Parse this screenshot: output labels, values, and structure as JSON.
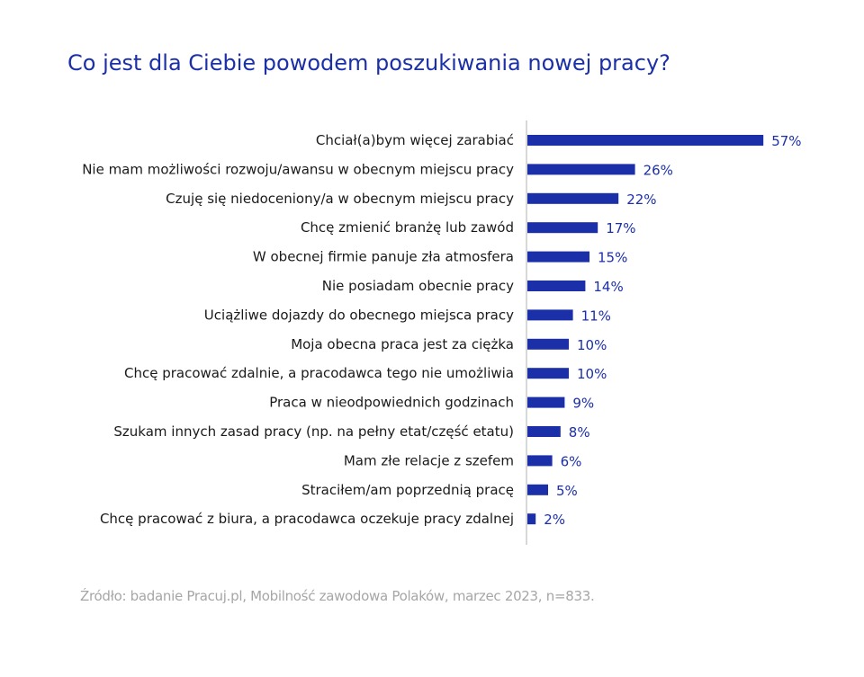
{
  "title": "Co jest dla Ciebie powodem poszukiwania nowej pracy?",
  "source": "Źródło: badanie Pracuj.pl, Mobilność zawodowa Polaków, marzec 2023, n=833.",
  "colors": {
    "bar": "#1B2FA8",
    "title": "#1B2FA8",
    "axis": "#b0b0b0",
    "source": "#a6a6a6"
  },
  "chart_data": {
    "type": "bar",
    "orientation": "horizontal",
    "title": "Co jest dla Ciebie powodem poszukiwania nowej pracy?",
    "xlabel": "",
    "ylabel": "",
    "xlim": [
      0,
      60
    ],
    "grid": false,
    "categories": [
      "Chciał(a)bym więcej zarabiać",
      "Nie mam możliwości rozwoju/awansu w obecnym miejscu pracy",
      "Czuję się niedoceniony/a w obecnym miejscu pracy",
      "Chcę zmienić branżę lub zawód",
      "W obecnej firmie panuje zła atmosfera",
      "Nie posiadam obecnie pracy",
      "Uciążliwe dojazdy do obecnego miejsca pracy",
      "Moja obecna praca jest za ciężka",
      "Chcę pracować zdalnie, a pracodawca tego nie umożliwia",
      "Praca w nieodpowiednich godzinach",
      "Szukam innych zasad pracy (np. na pełny etat/część etatu)",
      "Mam złe relacje z szefem",
      "Straciłem/am poprzednią pracę",
      "Chcę pracować z biura, a pracodawca oczekuje pracy zdalnej"
    ],
    "values": [
      57,
      26,
      22,
      17,
      15,
      14,
      11,
      10,
      10,
      9,
      8,
      6,
      5,
      2
    ],
    "value_labels": [
      "57%",
      "26%",
      "22%",
      "17%",
      "15%",
      "14%",
      "11%",
      "10%",
      "10%",
      "9%",
      "8%",
      "6%",
      "5%",
      "2%"
    ]
  }
}
